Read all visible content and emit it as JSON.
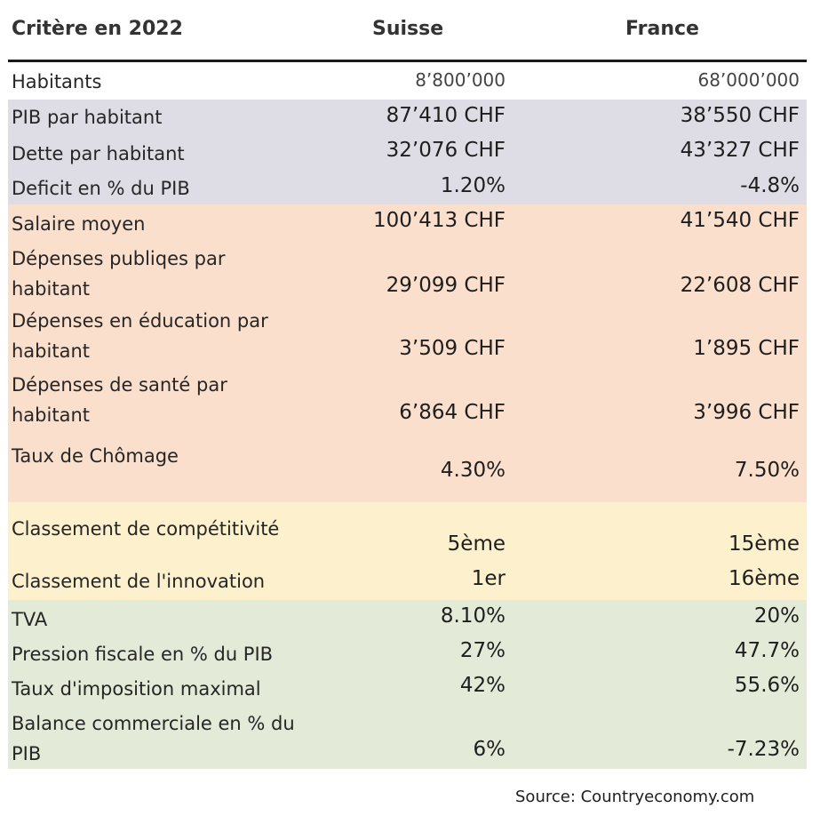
{
  "chart_data": {
    "type": "table",
    "columns": [
      "Critère en 2022",
      "Suisse",
      "France"
    ],
    "rows": [
      {
        "label": "Habitants",
        "suisse": "8’800’000",
        "france": "68’000’000"
      },
      {
        "label": "PIB par habitant",
        "suisse": "87’410 CHF",
        "france": "38’550 CHF"
      },
      {
        "label": "Dette par habitant",
        "suisse": "32’076 CHF",
        "france": "43’327 CHF"
      },
      {
        "label": "Deficit en % du PIB",
        "suisse": "1.20%",
        "france": "-4.8%"
      },
      {
        "label": "Salaire moyen",
        "suisse": "100’413 CHF",
        "france": "41’540 CHF"
      },
      {
        "label": "Dépenses publiqes par habitant",
        "suisse": "29’099 CHF",
        "france": "22’608 CHF"
      },
      {
        "label": "Dépenses en éducation par habitant",
        "suisse": "3’509 CHF",
        "france": "1’895 CHF"
      },
      {
        "label": "Dépenses de santé par habitant",
        "suisse": "6’864 CHF",
        "france": "3’996 CHF"
      },
      {
        "label": "Taux de Chômage",
        "suisse": "4.30%",
        "france": "7.50%"
      },
      {
        "label": "Classement de compétitivité",
        "suisse": "5ème",
        "france": "15ème"
      },
      {
        "label": "Classement de l'innovation",
        "suisse": "1er",
        "france": "16ème"
      },
      {
        "label": "TVA",
        "suisse": "8.10%",
        "france": "20%"
      },
      {
        "label": "Pression fiscale en % du PIB",
        "suisse": "27%",
        "france": "47.7%"
      },
      {
        "label": "Taux d'imposition maximal",
        "suisse": "42%",
        "france": "55.6%"
      },
      {
        "label": "Balance commerciale en % du PIB",
        "suisse": "6%",
        "france": "-7.23%"
      }
    ],
    "group_colors": {
      "population": "#ffffff",
      "economie": "#dedde6",
      "depenses": "#fadfcd",
      "classements": "#fdf0cd",
      "fiscalite": "#e3ebd8"
    }
  },
  "source": "Source: Countryeconomy.com"
}
